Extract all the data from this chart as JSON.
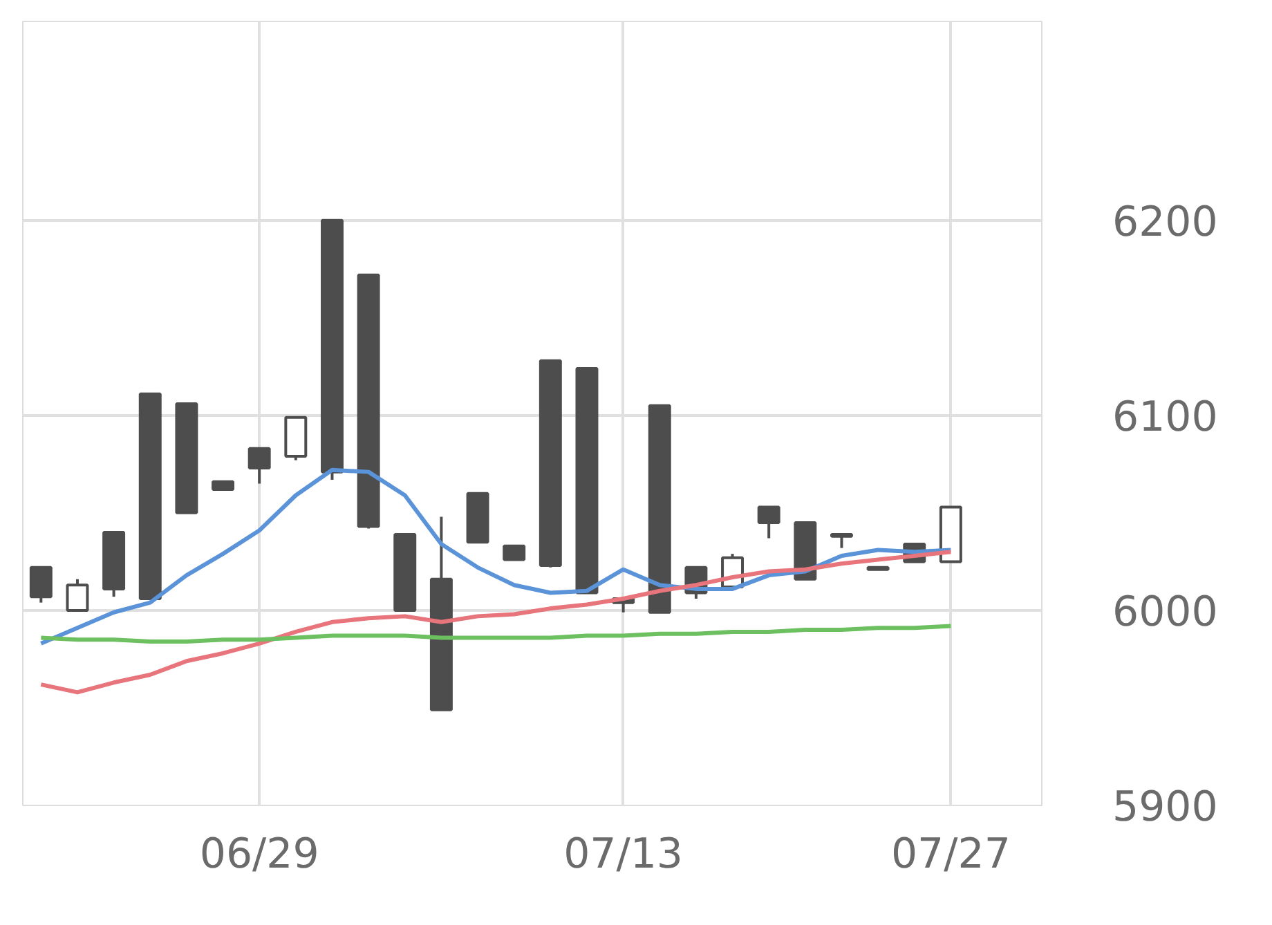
{
  "chart_data": {
    "type": "candlestick",
    "categories": [
      null,
      null,
      null,
      null,
      null,
      null,
      "06/29",
      null,
      null,
      null,
      null,
      null,
      null,
      null,
      null,
      null,
      "07/13",
      null,
      null,
      null,
      null,
      null,
      null,
      null,
      null,
      "07/27"
    ],
    "ohlc": [
      [
        6022,
        6022,
        6004,
        6007
      ],
      [
        6000,
        6016,
        6000,
        6013
      ],
      [
        6040,
        6040,
        6007,
        6011
      ],
      [
        6111,
        6111,
        6006,
        6006
      ],
      [
        6106,
        6106,
        6050,
        6050
      ],
      [
        6066,
        6066,
        6062,
        6062
      ],
      [
        6083,
        6083,
        6065,
        6073
      ],
      [
        6079,
        6099,
        6077,
        6099
      ],
      [
        6200,
        6200,
        6067,
        6071
      ],
      [
        6172,
        6172,
        6042,
        6043
      ],
      [
        6039,
        6039,
        6000,
        6000
      ],
      [
        6016,
        6048,
        5949,
        5949
      ],
      [
        6060,
        6060,
        6035,
        6035
      ],
      [
        6033,
        6033,
        6026,
        6026
      ],
      [
        6128,
        6128,
        6022,
        6023
      ],
      [
        6124,
        6124,
        6009,
        6009
      ],
      [
        6006,
        6007,
        5999,
        6004
      ],
      [
        6105,
        6105,
        5999,
        5999
      ],
      [
        6022,
        6022,
        6006,
        6009
      ],
      [
        6012,
        6029,
        6012,
        6027
      ],
      [
        6053,
        6053,
        6037,
        6045
      ],
      [
        6045,
        6045,
        6016,
        6016
      ],
      [
        6039,
        6039,
        6032,
        6038
      ],
      [
        6022,
        6022,
        6021,
        6021
      ],
      [
        6034,
        6034,
        6025,
        6025
      ],
      [
        6025,
        6053,
        6025,
        6053
      ]
    ],
    "color": "#4d4d4d",
    "series": [
      {
        "type": "line",
        "color": "#5b93d8",
        "values": [
          5983,
          5991,
          5999,
          6004,
          6018,
          6029,
          6041,
          6059,
          6072,
          6071,
          6059,
          6034,
          6022,
          6013,
          6009,
          6010,
          6021,
          6013,
          6011,
          6011,
          6018,
          6020,
          6028,
          6031,
          6030,
          6031
        ]
      },
      {
        "type": "line",
        "color": "#e8747c",
        "values": [
          5962,
          5958,
          5963,
          5967,
          5974,
          5978,
          5983,
          5989,
          5994,
          5996,
          5997,
          5994,
          5997,
          5998,
          6001,
          6003,
          6006,
          6010,
          6013,
          6017,
          6020,
          6021,
          6024,
          6026,
          6028,
          6030
        ]
      },
      {
        "type": "line",
        "color": "#6cc060",
        "values": [
          5986,
          5985,
          5985,
          5984,
          5984,
          5985,
          5985,
          5986,
          5987,
          5987,
          5987,
          5986,
          5986,
          5986,
          5986,
          5987,
          5987,
          5988,
          5988,
          5989,
          5989,
          5990,
          5990,
          5991,
          5991,
          5992
        ]
      }
    ],
    "ylim": [
      5900,
      6302
    ],
    "yticks": [
      5900,
      6000,
      6100,
      6200
    ],
    "grid": true
  }
}
